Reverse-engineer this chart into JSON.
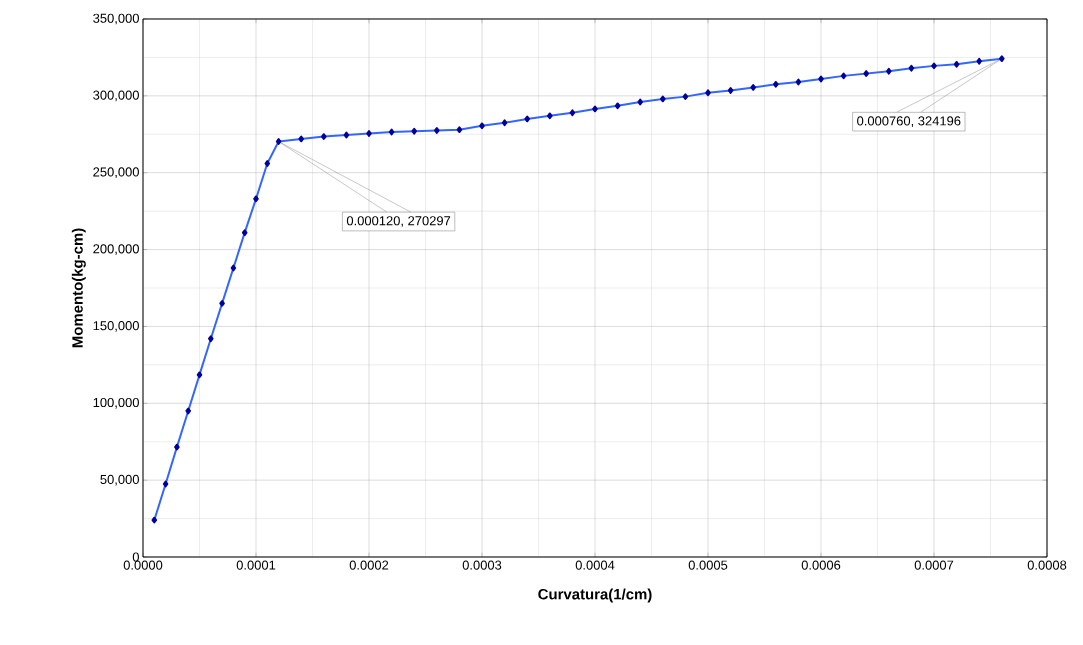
{
  "chart_data": {
    "type": "line",
    "xlabel": "Curvatura(1/cm)",
    "ylabel": "Momento(kg-cm)",
    "x": [
      1e-05,
      2e-05,
      3e-05,
      4e-05,
      5e-05,
      6e-05,
      7e-05,
      8e-05,
      9e-05,
      0.0001,
      0.00011,
      0.00012,
      0.00014,
      0.00016,
      0.00018,
      0.0002,
      0.00022,
      0.00024,
      0.00026,
      0.00028,
      0.0003,
      0.00032,
      0.00034,
      0.00036,
      0.00038,
      0.0004,
      0.00042,
      0.00044,
      0.00046,
      0.00048,
      0.0005,
      0.00052,
      0.00054,
      0.00056,
      0.00058,
      0.0006,
      0.00062,
      0.00064,
      0.00066,
      0.00068,
      0.0007,
      0.00072,
      0.00074,
      0.00076
    ],
    "series": [
      {
        "color": "#3366ff",
        "values": [
          24000,
          47500,
          71500,
          95000,
          118500,
          142000,
          165000,
          188000,
          211000,
          233000,
          256000,
          270297,
          272000,
          273500,
          274500,
          275500,
          276500,
          277000,
          277500,
          278000,
          280500,
          282500,
          285000,
          287000,
          289000,
          291500,
          293500,
          296000,
          298000,
          299500,
          302000,
          303500,
          305500,
          307500,
          309000,
          311000,
          313000,
          314500,
          316000,
          318000,
          319500,
          320500,
          322500,
          324196
        ]
      }
    ],
    "marker": "diamond",
    "grid": true,
    "xlim": [
      0,
      0.0008
    ],
    "ylim": [
      0,
      350000
    ],
    "xticks": [
      {
        "value": 0,
        "label": "0.0000"
      },
      {
        "value": 0.0001,
        "label": "0.0001"
      },
      {
        "value": 0.0002,
        "label": "0.0002"
      },
      {
        "value": 0.0003,
        "label": "0.0003"
      },
      {
        "value": 0.0004,
        "label": "0.0004"
      },
      {
        "value": 0.0005,
        "label": "0.0005"
      },
      {
        "value": 0.0006,
        "label": "0.0006"
      },
      {
        "value": 0.0007,
        "label": "0.0007"
      },
      {
        "value": 0.0008,
        "label": "0.0008"
      }
    ],
    "yticks": [
      0,
      {
        "value": 50000,
        "label": "50,000"
      },
      {
        "value": 100000,
        "label": "100,000"
      },
      {
        "value": 150000,
        "label": "150,000"
      },
      {
        "value": 200000,
        "label": "200,000"
      },
      {
        "value": 250000,
        "label": "250,000"
      },
      {
        "value": 300000,
        "label": "300,000"
      },
      {
        "value": 350000,
        "label": "350,000"
      }
    ],
    "annotations": [
      {
        "text": "0.000120, 270297",
        "x": 0.00012,
        "y": 270297
      },
      {
        "text": "0.000760, 324196",
        "x": 0.00076,
        "y": 324196
      }
    ]
  }
}
